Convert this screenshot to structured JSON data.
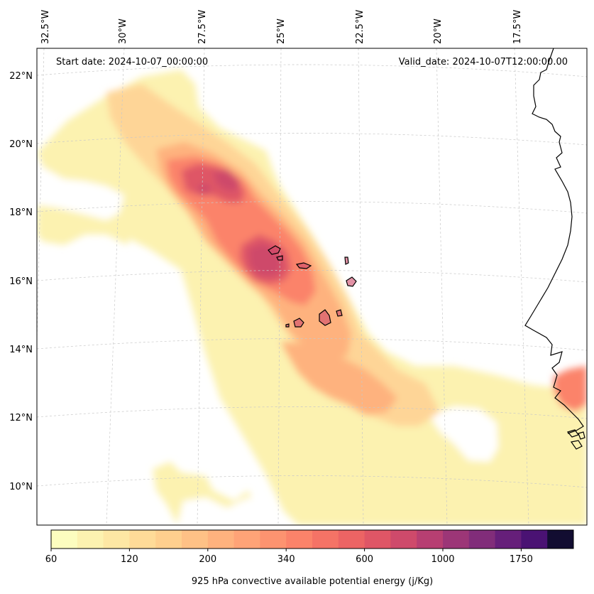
{
  "map": {
    "start_label": "Start date: 2024-10-07_00:00:00",
    "valid_label": "Valid_date: 2024-10-07T12:00:00.00",
    "lon_labels": [
      "32.5°W",
      "30°W",
      "27.5°W",
      "25°W",
      "22.5°W",
      "20°W",
      "17.5°W"
    ],
    "lat_labels": [
      "22°N",
      "20°N",
      "18°N",
      "16°N",
      "14°N",
      "12°N",
      "10°N"
    ]
  },
  "colorbar": {
    "title": "925 hPa convective available potential energy (j/Kg)",
    "tick_labels": [
      "60",
      "120",
      "200",
      "340",
      "600",
      "1000",
      "1750"
    ],
    "levels": [
      "60",
      "80",
      "100",
      "120",
      "140",
      "160",
      "200",
      "240",
      "280",
      "340",
      "400",
      "480",
      "600",
      "700",
      "800",
      "1000",
      "1200",
      "1400",
      "1750",
      "2000",
      "2500"
    ],
    "colors": [
      "#fcfdbf",
      "#fcf2b0",
      "#fde7a4",
      "#fedb98",
      "#fecf8e",
      "#fec186",
      "#feb27e",
      "#fea377",
      "#fd9370",
      "#fb836a",
      "#f57366",
      "#ec6464",
      "#df5666",
      "#ce4a6b",
      "#b73f72",
      "#9c3677",
      "#812d7a",
      "#661f7a",
      "#4a1273",
      "#120d31"
    ]
  }
}
